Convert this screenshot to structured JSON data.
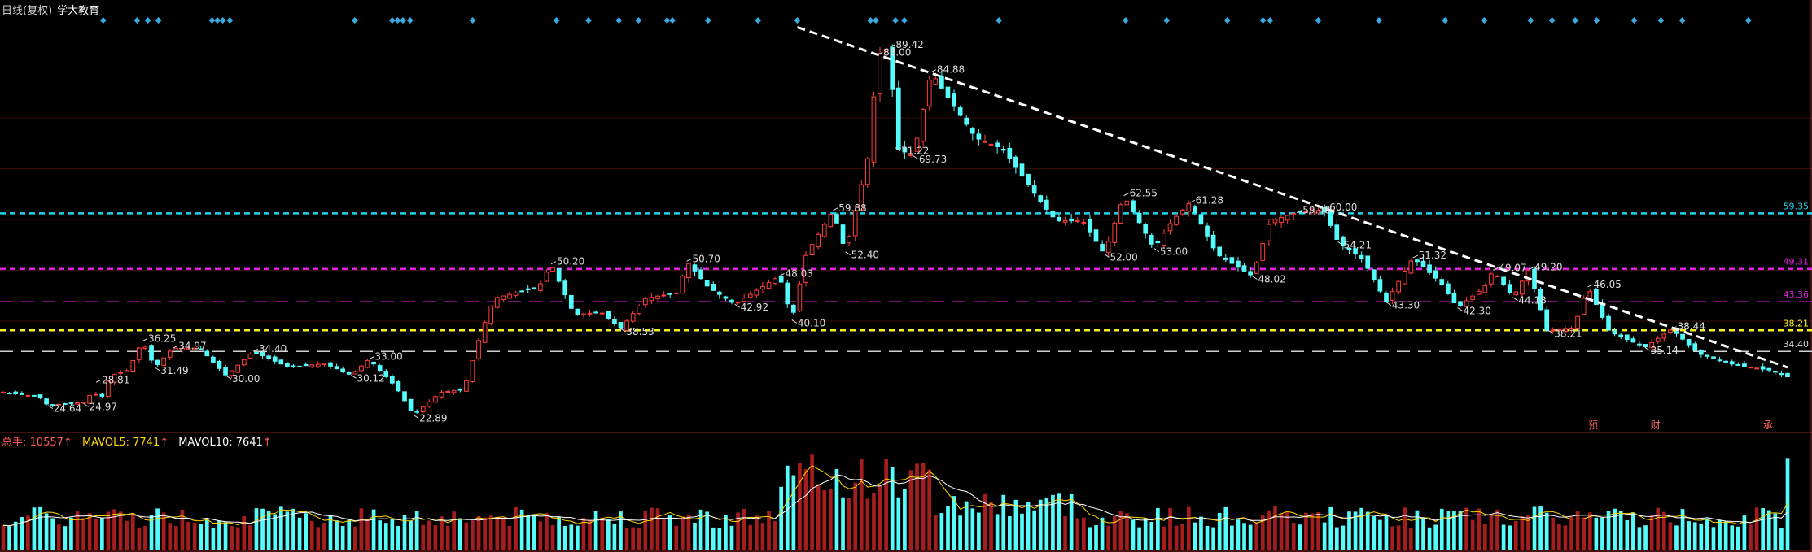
{
  "header": {
    "period": "日线(复权)",
    "stock_name": "学大教育"
  },
  "volume_header": {
    "total_label": "总手:",
    "total_value": "10557",
    "mavol5_label": "MAVOL5:",
    "mavol5_value": "7741",
    "mavol10_label": "MAVOL10:",
    "mavol10_value": "7641",
    "arrow": "↑"
  },
  "colors": {
    "up": "#ff3d3d",
    "up_fill": "#000000",
    "down": "#54fcfc",
    "down_volume": "#54fcfc",
    "up_volume": "#a61d1d",
    "grid": "#3a0d0d",
    "border": "#8a1f1f",
    "level_cyan": "#22d3ee",
    "level_magenta": "#e020e0",
    "level_yellow": "#f2f220",
    "level_white": "#d0d0d0",
    "trendline": "#ffffff",
    "label_text": "#dddddd",
    "marker": "#3aa9e0",
    "mavol5": "#ffd700",
    "mavol10": "#ffffff",
    "event_text": "#ff6b6b"
  },
  "chart_data": {
    "type": "candlestick",
    "price_range": [
      21.5,
      93.5
    ],
    "horizontal_levels": [
      {
        "value": 59.35,
        "label": "59.35",
        "color": "level_cyan",
        "dash": "dense"
      },
      {
        "value": 49.31,
        "label": "49.31",
        "color": "level_magenta",
        "dash": "dense"
      },
      {
        "value": 43.36,
        "label": "43.36",
        "color": "level_magenta",
        "dash": "long"
      },
      {
        "value": 38.21,
        "label": "38.21",
        "color": "level_yellow",
        "dash": "dense"
      },
      {
        "value": 34.4,
        "label": "34.40",
        "color": "level_white",
        "dash": "long"
      }
    ],
    "trendline": {
      "from": [
        0.445,
        93.0
      ],
      "to": [
        1.0,
        31.5
      ]
    },
    "anchors": [
      [
        0.0,
        27.0
      ],
      [
        0.02,
        26.2
      ],
      [
        0.025,
        24.64
      ],
      [
        0.045,
        25.2
      ],
      [
        0.05,
        27.0
      ],
      [
        0.055,
        26.0
      ],
      [
        0.06,
        30.0
      ],
      [
        0.07,
        31.0
      ],
      [
        0.078,
        36.25
      ],
      [
        0.085,
        31.49
      ],
      [
        0.095,
        34.97
      ],
      [
        0.11,
        35.0
      ],
      [
        0.125,
        30.0
      ],
      [
        0.14,
        34.4
      ],
      [
        0.16,
        31.5
      ],
      [
        0.18,
        32.2
      ],
      [
        0.195,
        30.12
      ],
      [
        0.205,
        33.0
      ],
      [
        0.22,
        28.0
      ],
      [
        0.23,
        22.89
      ],
      [
        0.245,
        27.0
      ],
      [
        0.258,
        27.5
      ],
      [
        0.268,
        38.0
      ],
      [
        0.275,
        44.0
      ],
      [
        0.3,
        46.0
      ],
      [
        0.307,
        50.2
      ],
      [
        0.32,
        41.0
      ],
      [
        0.335,
        41.5
      ],
      [
        0.346,
        38.53
      ],
      [
        0.36,
        44.0
      ],
      [
        0.378,
        45.0
      ],
      [
        0.383,
        50.7
      ],
      [
        0.395,
        46.0
      ],
      [
        0.41,
        42.92
      ],
      [
        0.42,
        45.0
      ],
      [
        0.435,
        48.03
      ],
      [
        0.442,
        40.1
      ],
      [
        0.45,
        52.0
      ],
      [
        0.465,
        59.88
      ],
      [
        0.472,
        52.4
      ],
      [
        0.485,
        70.0
      ],
      [
        0.49,
        88.0
      ],
      [
        0.497,
        89.42
      ],
      [
        0.5,
        71.22
      ],
      [
        0.51,
        69.73
      ],
      [
        0.52,
        84.88
      ],
      [
        0.53,
        80.0
      ],
      [
        0.545,
        73.0
      ],
      [
        0.56,
        71.0
      ],
      [
        0.58,
        62.0
      ],
      [
        0.59,
        58.0
      ],
      [
        0.605,
        58.0
      ],
      [
        0.617,
        52.0
      ],
      [
        0.628,
        62.55
      ],
      [
        0.645,
        53.0
      ],
      [
        0.655,
        58.0
      ],
      [
        0.665,
        61.28
      ],
      [
        0.68,
        52.0
      ],
      [
        0.7,
        48.02
      ],
      [
        0.71,
        58.0
      ],
      [
        0.725,
        59.48
      ],
      [
        0.74,
        60.0
      ],
      [
        0.748,
        54.21
      ],
      [
        0.762,
        51.0
      ],
      [
        0.775,
        43.3
      ],
      [
        0.79,
        51.32
      ],
      [
        0.805,
        47.0
      ],
      [
        0.815,
        42.3
      ],
      [
        0.83,
        46.0
      ],
      [
        0.835,
        49.07
      ],
      [
        0.846,
        44.18
      ],
      [
        0.855,
        49.2
      ],
      [
        0.865,
        38.2
      ],
      [
        0.88,
        38.5
      ],
      [
        0.888,
        46.05
      ],
      [
        0.9,
        38.0
      ],
      [
        0.92,
        35.14
      ],
      [
        0.935,
        38.44
      ],
      [
        0.95,
        34.0
      ],
      [
        0.97,
        32.0
      ],
      [
        0.99,
        31.0
      ],
      [
        1.0,
        29.8
      ]
    ],
    "labels": [
      {
        "t": 0.025,
        "v": 24.64,
        "text": "24.64",
        "side": "low"
      },
      {
        "t": 0.045,
        "v": 24.97,
        "text": "24.97",
        "side": "low"
      },
      {
        "t": 0.052,
        "v": 28.81,
        "text": "28.81",
        "side": "high"
      },
      {
        "t": 0.078,
        "v": 36.25,
        "text": "36.25",
        "side": "high"
      },
      {
        "t": 0.085,
        "v": 31.49,
        "text": "31.49",
        "side": "low"
      },
      {
        "t": 0.095,
        "v": 34.97,
        "text": "34.97",
        "side": "high"
      },
      {
        "t": 0.125,
        "v": 30.0,
        "text": "30.00",
        "side": "low"
      },
      {
        "t": 0.14,
        "v": 34.4,
        "text": "34.40",
        "side": "high"
      },
      {
        "t": 0.195,
        "v": 30.12,
        "text": "30.12",
        "side": "low"
      },
      {
        "t": 0.205,
        "v": 33.0,
        "text": "33.00",
        "side": "high"
      },
      {
        "t": 0.23,
        "v": 22.89,
        "text": "22.89",
        "side": "low"
      },
      {
        "t": 0.307,
        "v": 50.2,
        "text": "50.20",
        "side": "high"
      },
      {
        "t": 0.346,
        "v": 38.53,
        "text": "38.53",
        "side": "low"
      },
      {
        "t": 0.383,
        "v": 50.7,
        "text": "50.70",
        "side": "high"
      },
      {
        "t": 0.41,
        "v": 42.92,
        "text": "42.92",
        "side": "low"
      },
      {
        "t": 0.435,
        "v": 48.03,
        "text": "48.03",
        "side": "high"
      },
      {
        "t": 0.442,
        "v": 40.1,
        "text": "40.10",
        "side": "low"
      },
      {
        "t": 0.465,
        "v": 59.88,
        "text": "59.88",
        "side": "high"
      },
      {
        "t": 0.472,
        "v": 52.4,
        "text": "52.40",
        "side": "low"
      },
      {
        "t": 0.49,
        "v": 88.0,
        "text": "88.00",
        "side": "high"
      },
      {
        "t": 0.497,
        "v": 89.42,
        "text": "89.42",
        "side": "high"
      },
      {
        "t": 0.5,
        "v": 71.22,
        "text": "71.22",
        "side": "low"
      },
      {
        "t": 0.51,
        "v": 69.73,
        "text": "69.73",
        "side": "low"
      },
      {
        "t": 0.52,
        "v": 84.88,
        "text": "84.88",
        "side": "high"
      },
      {
        "t": 0.617,
        "v": 52.0,
        "text": "52.00",
        "side": "low"
      },
      {
        "t": 0.628,
        "v": 62.55,
        "text": "62.55",
        "side": "high"
      },
      {
        "t": 0.645,
        "v": 53.0,
        "text": "53.00",
        "side": "low"
      },
      {
        "t": 0.665,
        "v": 61.28,
        "text": "61.28",
        "side": "high"
      },
      {
        "t": 0.7,
        "v": 48.02,
        "text": "48.02",
        "side": "low"
      },
      {
        "t": 0.725,
        "v": 59.48,
        "text": "59.48",
        "side": "high"
      },
      {
        "t": 0.74,
        "v": 60.0,
        "text": "60.00",
        "side": "high"
      },
      {
        "t": 0.748,
        "v": 54.21,
        "text": "54.21",
        "side": "low"
      },
      {
        "t": 0.775,
        "v": 43.3,
        "text": "43.30",
        "side": "low"
      },
      {
        "t": 0.79,
        "v": 51.32,
        "text": "51.32",
        "side": "high"
      },
      {
        "t": 0.815,
        "v": 42.3,
        "text": "42.30",
        "side": "low"
      },
      {
        "t": 0.835,
        "v": 49.07,
        "text": "49.07",
        "side": "high"
      },
      {
        "t": 0.846,
        "v": 44.18,
        "text": "44.18",
        "side": "low"
      },
      {
        "t": 0.855,
        "v": 49.2,
        "text": "49.20",
        "side": "high"
      },
      {
        "t": 0.866,
        "v": 38.21,
        "text": "38.21",
        "side": "low"
      },
      {
        "t": 0.888,
        "v": 46.05,
        "text": "46.05",
        "side": "high"
      },
      {
        "t": 0.92,
        "v": 35.14,
        "text": "35.14",
        "side": "low"
      },
      {
        "t": 0.935,
        "v": 38.44,
        "text": "38.44",
        "side": "high"
      }
    ],
    "markers": [
      0.056,
      0.075,
      0.081,
      0.087,
      0.117,
      0.12,
      0.123,
      0.127,
      0.197,
      0.218,
      0.221,
      0.224,
      0.228,
      0.263,
      0.31,
      0.328,
      0.345,
      0.356,
      0.372,
      0.375,
      0.395,
      0.423,
      0.445,
      0.486,
      0.489,
      0.5,
      0.505,
      0.558,
      0.629,
      0.652,
      0.686,
      0.706,
      0.71,
      0.737,
      0.771,
      0.808,
      0.83,
      0.856,
      0.868,
      0.881,
      0.893,
      0.914,
      0.929,
      0.941,
      0.978
    ],
    "event_labels": [
      {
        "t": 0.891,
        "text": "预"
      },
      {
        "t": 0.926,
        "text": "财"
      },
      {
        "t": 0.989,
        "text": "承"
      }
    ],
    "volume": {
      "max": 12000,
      "latest": 10557,
      "mavol5": 7741,
      "mavol10": 7641
    }
  }
}
